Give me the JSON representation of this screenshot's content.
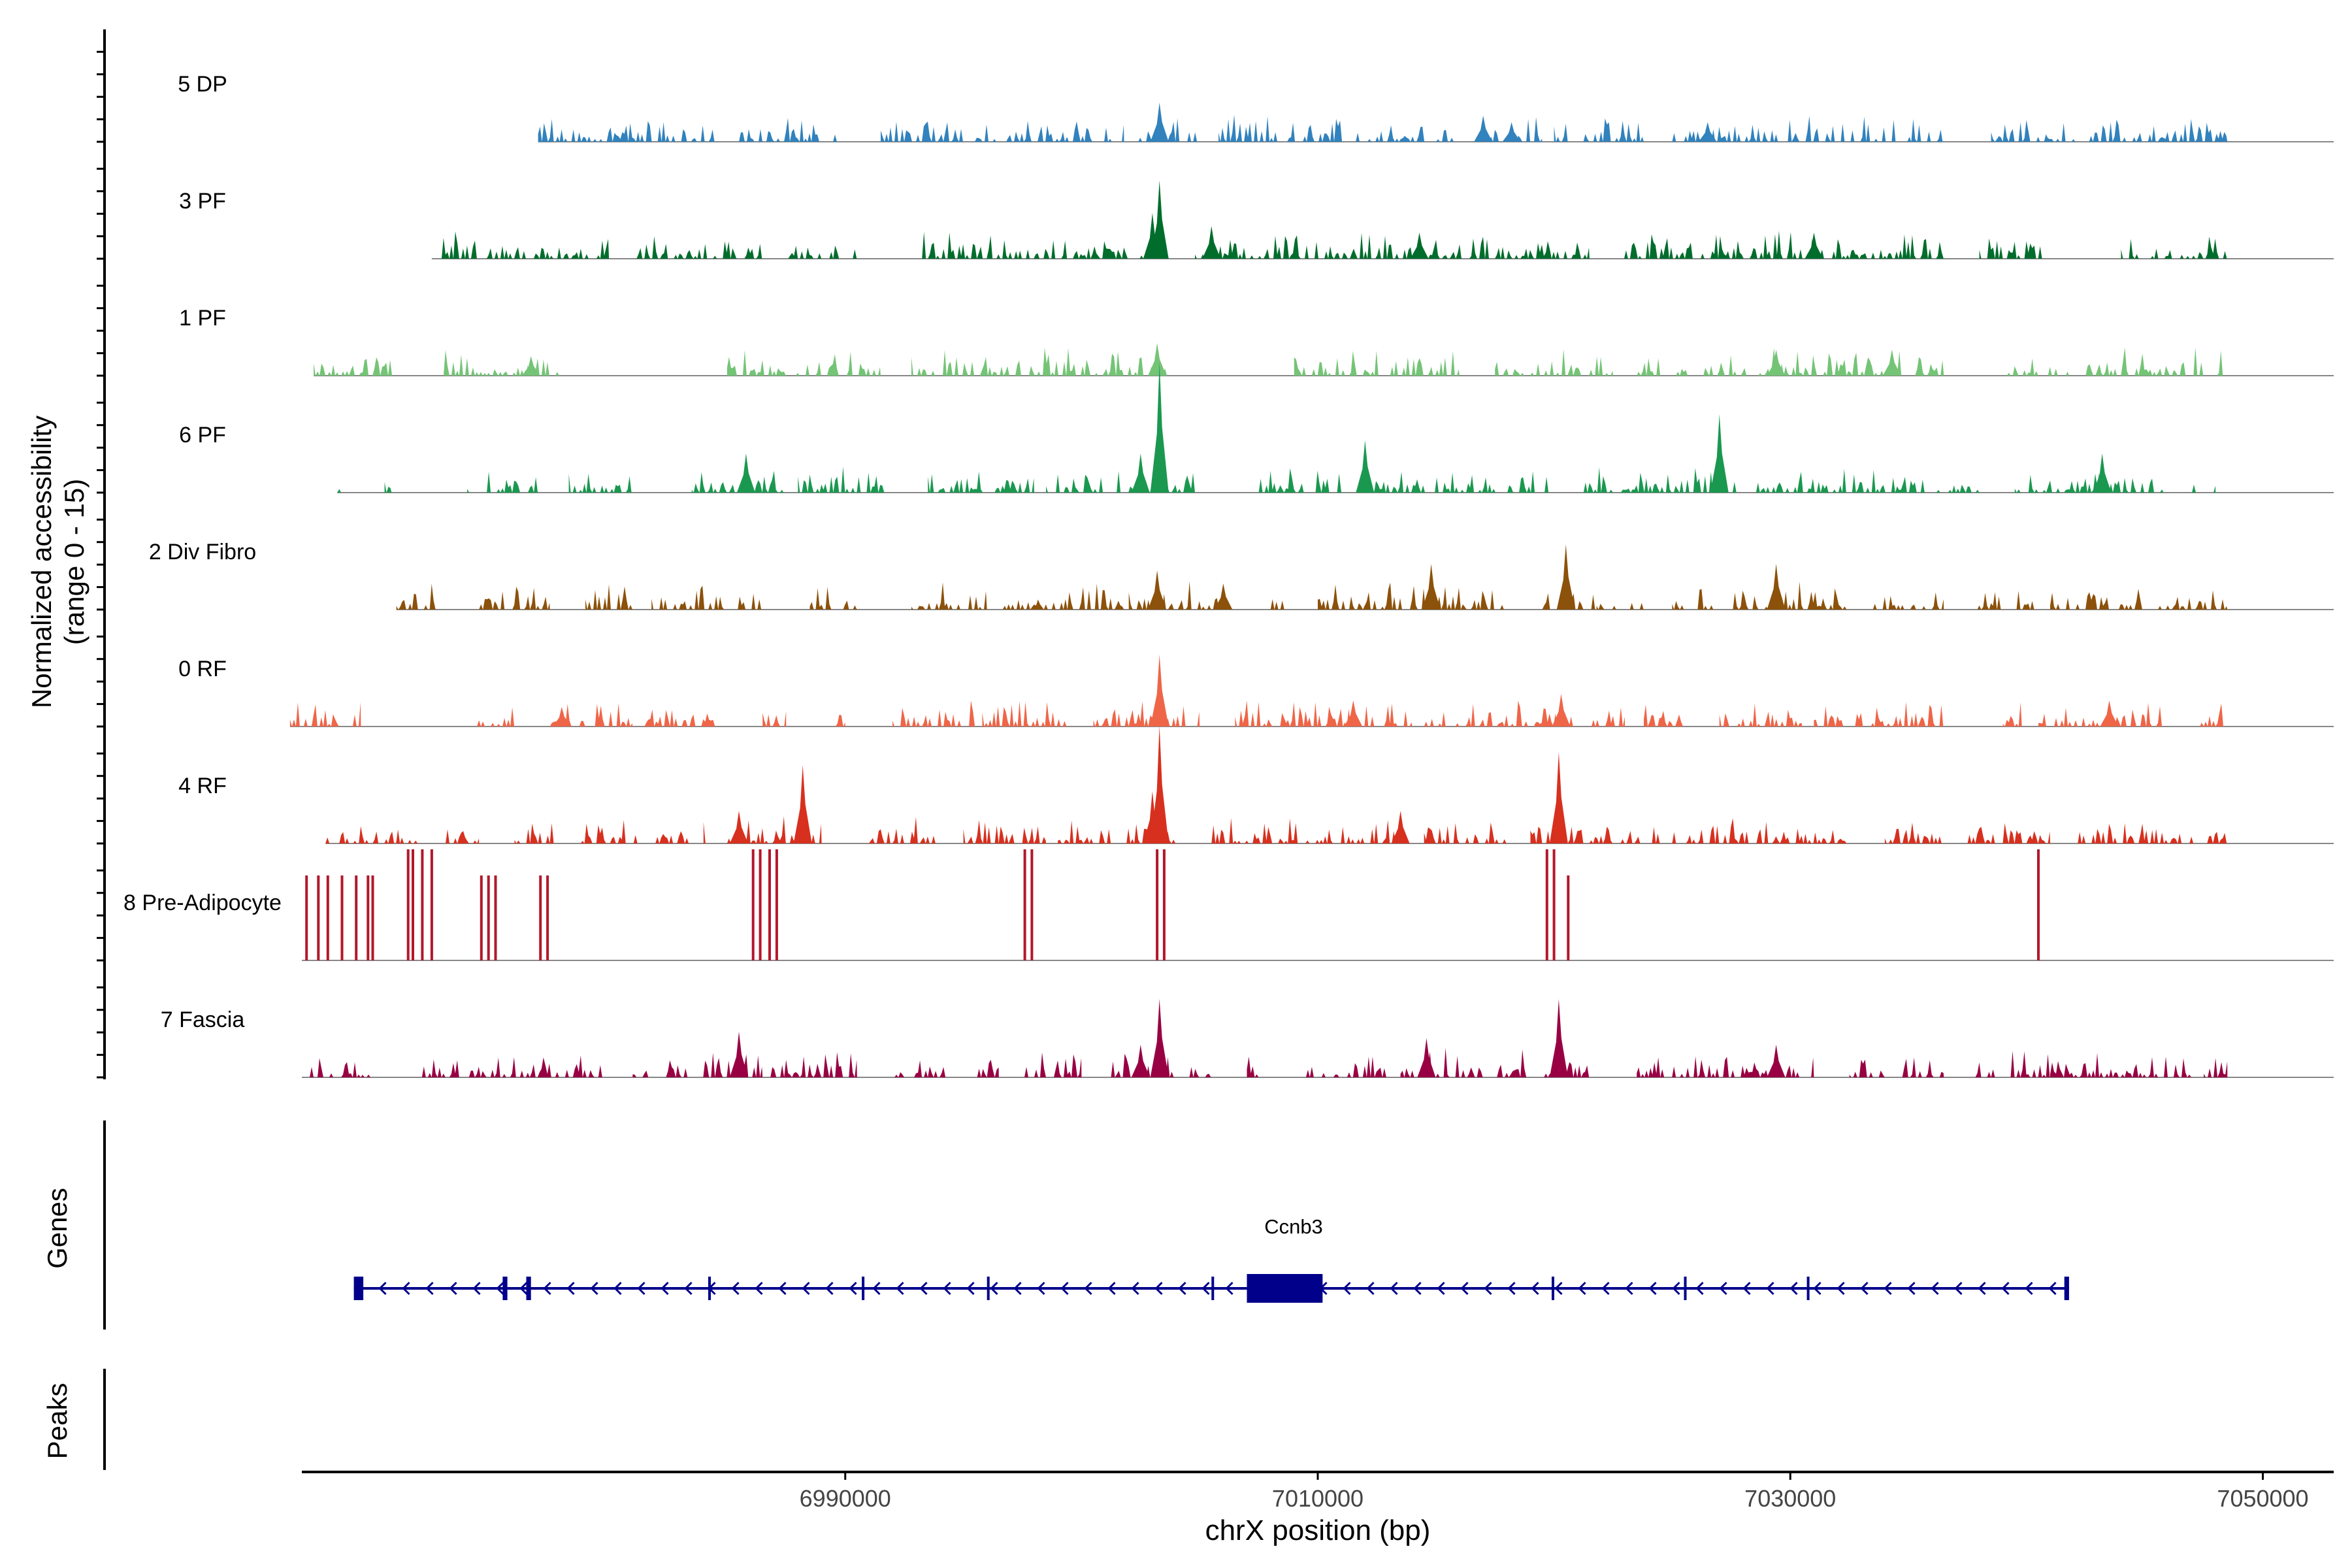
{
  "chart_data": {
    "type": "area",
    "title": "",
    "ylabel_line1": "Normalized accessibility",
    "ylabel_line2": "(range 0 - 15)",
    "ylim": [
      0,
      15
    ],
    "xlabel": "chrX position (bp)",
    "xlim": [
      6967000,
      7053000
    ],
    "xticks": [
      6990000,
      7010000,
      7030000,
      7050000
    ],
    "xtick_labels": [
      "6990000",
      "7010000",
      "7030000",
      "7050000"
    ],
    "tracks": [
      {
        "name": "5 DP",
        "color": "#3182bd",
        "range": [
          6977000,
          7048500
        ],
        "segments": [
          [
            6977000,
            6984500
          ],
          [
            6985500,
            6989800
          ],
          [
            6991500,
            7001800
          ],
          [
            7002400,
            7005200
          ],
          [
            7005800,
            7015800
          ],
          [
            7017000,
            7019500
          ],
          [
            7020000,
            7023800
          ],
          [
            7025000,
            7036500
          ],
          [
            7038500,
            7048500
          ]
        ],
        "peaks": [
          [
            7003300,
            6
          ],
          [
            7017000,
            4
          ],
          [
            7026500,
            3
          ],
          [
            7018200,
            3
          ]
        ]
      },
      {
        "name": "3 PF",
        "color": "#006d2c",
        "range": [
          6972500,
          7048500
        ],
        "segments": [
          [
            6972500,
            6980000
          ],
          [
            6981000,
            6986500
          ],
          [
            6987500,
            6990500
          ],
          [
            6993000,
            7002800
          ],
          [
            7004800,
            7021500
          ],
          [
            7022800,
            7036500
          ],
          [
            7038000,
            7040800
          ],
          [
            7044000,
            7048500
          ]
        ],
        "peaks": [
          [
            7003300,
            12
          ],
          [
            7003000,
            7
          ],
          [
            7005500,
            5
          ],
          [
            7014300,
            4
          ],
          [
            7031000,
            4
          ]
        ]
      },
      {
        "name": "1 PF",
        "color": "#74c476",
        "range": [
          6967500,
          7048500
        ],
        "segments": [
          [
            6967500,
            6971000
          ],
          [
            6972500,
            6978000
          ],
          [
            6985000,
            6991500
          ],
          [
            6992800,
            6999800
          ],
          [
            6999800,
            7003800
          ],
          [
            7009000,
            7016000
          ],
          [
            7017500,
            7022500
          ],
          [
            7023500,
            7036500
          ],
          [
            7039000,
            7041800
          ],
          [
            7042500,
            7048500
          ]
        ],
        "peaks": [
          [
            7003200,
            5
          ],
          [
            7034300,
            4
          ],
          [
            7029400,
            4
          ],
          [
            6976700,
            3
          ]
        ]
      },
      {
        "name": "6 PF",
        "color": "#1a9850",
        "range": [
          6968500,
          7048500
        ],
        "segments": [
          [
            6968500,
            6969500
          ],
          [
            6970500,
            6970800
          ],
          [
            6974000,
            6977000
          ],
          [
            6978300,
            6981000
          ],
          [
            6983500,
            6987500
          ],
          [
            6988000,
            6991800
          ],
          [
            6993500,
            6998000
          ],
          [
            6998500,
            7004800
          ],
          [
            7007500,
            7011000
          ],
          [
            7011800,
            7019800
          ],
          [
            7021000,
            7038000
          ],
          [
            7039500,
            7040500
          ],
          [
            7040500,
            7045800
          ],
          [
            7047000,
            7048000
          ]
        ],
        "peaks": [
          [
            7003300,
            20
          ],
          [
            7027000,
            12
          ],
          [
            7012000,
            8
          ],
          [
            7002500,
            6
          ],
          [
            7043200,
            6
          ],
          [
            6985800,
            6
          ]
        ]
      },
      {
        "name": "2 Div Fibro",
        "color": "#8c510a",
        "range": [
          6971000,
          7048500
        ],
        "segments": [
          [
            6971000,
            6972800
          ],
          [
            6974500,
            6977500
          ],
          [
            6979000,
            6981000
          ],
          [
            6981800,
            6986500
          ],
          [
            6988500,
            6990500
          ],
          [
            6992800,
            6996000
          ],
          [
            6996500,
            7001800
          ],
          [
            7002000,
            7006800
          ],
          [
            7008000,
            7009000
          ],
          [
            7010000,
            7018000
          ],
          [
            7019500,
            7021800
          ],
          [
            7021800,
            7023800
          ],
          [
            7025000,
            7032500
          ],
          [
            7033000,
            7036500
          ],
          [
            7037500,
            7040500
          ],
          [
            7041000,
            7048500
          ]
        ],
        "peaks": [
          [
            7020500,
            10
          ],
          [
            7014800,
            7
          ],
          [
            7003200,
            6
          ],
          [
            7029400,
            7
          ],
          [
            7006000,
            4
          ]
        ]
      },
      {
        "name": "0 RF",
        "color": "#ef6548",
        "range": [
          6966500,
          7048500
        ],
        "segments": [
          [
            6966500,
            6969500
          ],
          [
            6974000,
            6976000
          ],
          [
            6977500,
            6981000
          ],
          [
            6981500,
            6984500
          ],
          [
            6986500,
            6987500
          ],
          [
            6989500,
            6990000
          ],
          [
            6992000,
            6995500
          ],
          [
            6995800,
            6999500
          ],
          [
            7000500,
            7005000
          ],
          [
            7006500,
            7014000
          ],
          [
            7014500,
            7021000
          ],
          [
            7021500,
            7023000
          ],
          [
            7023800,
            7025500
          ],
          [
            7027000,
            7030500
          ],
          [
            7031000,
            7036500
          ],
          [
            7039000,
            7039800
          ],
          [
            7040500,
            7045800
          ],
          [
            7047000,
            7048500
          ]
        ],
        "peaks": [
          [
            7003300,
            11
          ],
          [
            7020300,
            5
          ],
          [
            7011500,
            4
          ],
          [
            7043500,
            4
          ],
          [
            6978000,
            3
          ]
        ]
      },
      {
        "name": "4 RF",
        "color": "#d7301f",
        "range": [
          6968000,
          7048500
        ],
        "segments": [
          [
            6968000,
            6972000
          ],
          [
            6973000,
            6974500
          ],
          [
            6976000,
            6978000
          ],
          [
            6978800,
            6981500
          ],
          [
            6981800,
            6983500
          ],
          [
            6984000,
            6989000
          ],
          [
            6991000,
            6994000
          ],
          [
            6995000,
            6998500
          ],
          [
            6999000,
            7004000
          ],
          [
            7005500,
            7013500
          ],
          [
            7014500,
            7018000
          ],
          [
            7019000,
            7024500
          ],
          [
            7025000,
            7032500
          ],
          [
            7034000,
            7036500
          ],
          [
            7037500,
            7041000
          ],
          [
            7042000,
            7048500
          ]
        ],
        "peaks": [
          [
            7003300,
            18
          ],
          [
            7020200,
            14
          ],
          [
            6988200,
            12
          ],
          [
            6985500,
            5
          ],
          [
            7013500,
            5
          ],
          [
            7003000,
            8
          ]
        ]
      },
      {
        "name": "8 Pre-Adipocyte",
        "color": "#b2182b",
        "range": [
          6967000,
          7052000
        ],
        "segments": [],
        "spikes": [
          [
            6967200,
            13
          ],
          [
            6967700,
            13
          ],
          [
            6968100,
            13
          ],
          [
            6968700,
            13
          ],
          [
            6969300,
            13
          ],
          [
            6969800,
            13
          ],
          [
            6970000,
            13
          ],
          [
            6971500,
            17
          ],
          [
            6971700,
            17
          ],
          [
            6972100,
            17
          ],
          [
            6972500,
            17
          ],
          [
            6974600,
            13
          ],
          [
            6974900,
            13
          ],
          [
            6975200,
            13
          ],
          [
            6977100,
            13
          ],
          [
            6977400,
            13
          ],
          [
            6986100,
            17
          ],
          [
            6986400,
            17
          ],
          [
            6986800,
            17
          ],
          [
            6987100,
            17
          ],
          [
            6997600,
            17
          ],
          [
            6997900,
            17
          ],
          [
            7003200,
            17
          ],
          [
            7003500,
            17
          ],
          [
            7019700,
            17
          ],
          [
            7020000,
            17
          ],
          [
            7020600,
            13
          ],
          [
            7040500,
            17
          ]
        ]
      },
      {
        "name": "7 Fascia",
        "color": "#980043",
        "range": [
          6967000,
          7048500
        ],
        "segments": [
          [
            6967000,
            6970000
          ],
          [
            6972000,
            6980000
          ],
          [
            6981000,
            6986500
          ],
          [
            6986500,
            6990500
          ],
          [
            6992000,
            6994500
          ],
          [
            6995500,
            6996500
          ],
          [
            6997500,
            7000000
          ],
          [
            7001000,
            7005500
          ],
          [
            7007000,
            7007500
          ],
          [
            7009500,
            7013500
          ],
          [
            7013500,
            7017000
          ],
          [
            7017500,
            7021500
          ],
          [
            7023500,
            7031000
          ],
          [
            7032500,
            7036500
          ],
          [
            7037500,
            7041000
          ],
          [
            7041000,
            7047000
          ],
          [
            7047500,
            7048500
          ]
        ],
        "peaks": [
          [
            7020200,
            12
          ],
          [
            7003300,
            12
          ],
          [
            6985500,
            7
          ],
          [
            7002500,
            5
          ],
          [
            7014600,
            6
          ],
          [
            7029400,
            5
          ]
        ]
      }
    ],
    "genes_label": "Genes",
    "gene": {
      "name": "Ccnb3",
      "strand": "-",
      "start": 6969200,
      "end": 7041800,
      "exons": [
        [
          6969200,
          6969600
        ],
        [
          6975500,
          6975700
        ],
        [
          6976500,
          6976700
        ],
        [
          6984200,
          6984300
        ],
        [
          6990700,
          6990800
        ],
        [
          6996000,
          6996100
        ],
        [
          7005500,
          7005600
        ],
        [
          7007000,
          7009800
        ],
        [
          7009800,
          7010200
        ],
        [
          7019900,
          7020000
        ],
        [
          7025500,
          7025600
        ],
        [
          7030700,
          7030800
        ],
        [
          7041600,
          7041800
        ]
      ],
      "cds": [
        7007000,
        7010200
      ]
    },
    "peaks_label": "Peaks"
  }
}
